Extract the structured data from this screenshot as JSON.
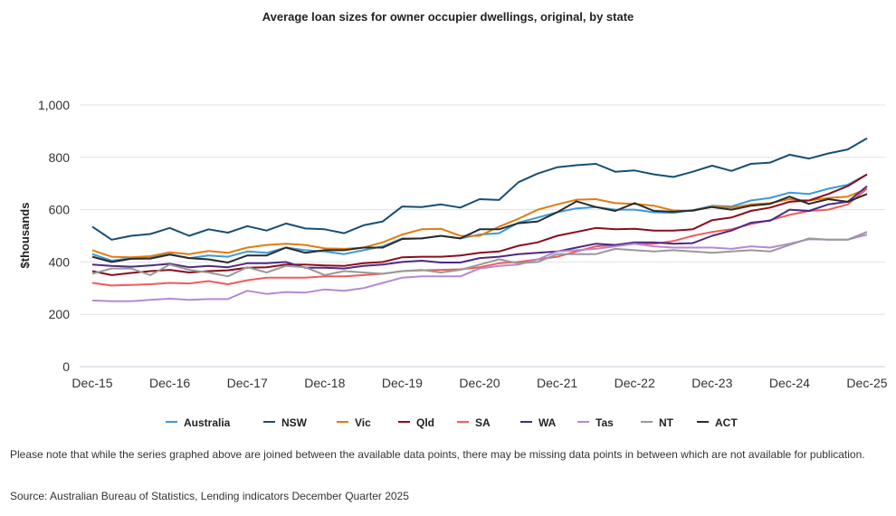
{
  "chart_data": {
    "type": "line",
    "title": "Average loan sizes for owner occupier dwellings, original, by state",
    "xlabel": "",
    "ylabel": "$thousands",
    "ylim": [
      0,
      1000
    ],
    "yticks": [
      0,
      200,
      400,
      600,
      800,
      1000
    ],
    "ytick_labels": [
      "0",
      "200",
      "400",
      "600",
      "800",
      "1,000"
    ],
    "xtick_labels": [
      "Dec-15",
      "Dec-16",
      "Dec-17",
      "Dec-18",
      "Dec-19",
      "Dec-20",
      "Dec-21",
      "Dec-22",
      "Dec-23",
      "Dec-24",
      "Dec-25"
    ],
    "x_start": "Dec-15",
    "x_frequency": "quarterly",
    "grid": true,
    "legend_position": "bottom",
    "series": [
      {
        "name": "Australia",
        "color": "#3a9ad9",
        "values": [
          430,
          405,
          415,
          420,
          430,
          415,
          425,
          420,
          440,
          435,
          455,
          445,
          440,
          430,
          445,
          460,
          490,
          490,
          500,
          490,
          505,
          510,
          550,
          570,
          590,
          605,
          610,
          600,
          600,
          590,
          588,
          598,
          615,
          612,
          635,
          645,
          665,
          660,
          680,
          695,
          735
        ]
      },
      {
        "name": "NSW",
        "color": "#174f73",
        "values": [
          535,
          485,
          500,
          507,
          530,
          500,
          525,
          512,
          537,
          520,
          547,
          528,
          525,
          510,
          540,
          555,
          612,
          610,
          620,
          608,
          640,
          637,
          705,
          738,
          762,
          770,
          775,
          745,
          750,
          735,
          725,
          745,
          768,
          748,
          775,
          780,
          810,
          795,
          815,
          830,
          873
        ]
      },
      {
        "name": "Vic",
        "color": "#e07c10",
        "values": [
          445,
          420,
          418,
          422,
          437,
          430,
          442,
          435,
          455,
          465,
          470,
          465,
          452,
          450,
          455,
          475,
          505,
          525,
          527,
          500,
          500,
          535,
          565,
          600,
          620,
          638,
          640,
          625,
          622,
          615,
          597,
          595,
          612,
          608,
          620,
          625,
          640,
          635,
          645,
          650,
          680
        ]
      },
      {
        "name": "Qld",
        "color": "#8b0d1c",
        "values": [
          365,
          350,
          358,
          365,
          370,
          360,
          365,
          368,
          378,
          380,
          390,
          390,
          387,
          385,
          395,
          400,
          418,
          420,
          420,
          425,
          435,
          440,
          462,
          475,
          500,
          515,
          530,
          525,
          527,
          520,
          520,
          525,
          560,
          570,
          595,
          608,
          630,
          635,
          660,
          690,
          735
        ]
      },
      {
        "name": "SA",
        "color": "#f25a5a",
        "values": [
          320,
          310,
          312,
          315,
          320,
          318,
          327,
          315,
          330,
          340,
          340,
          340,
          345,
          345,
          350,
          355,
          365,
          368,
          370,
          372,
          380,
          395,
          400,
          410,
          420,
          440,
          460,
          465,
          470,
          470,
          480,
          500,
          515,
          525,
          545,
          560,
          580,
          595,
          600,
          620,
          680
        ]
      },
      {
        "name": "WA",
        "color": "#4c2a85",
        "values": [
          390,
          385,
          382,
          387,
          393,
          380,
          385,
          380,
          395,
          395,
          400,
          378,
          378,
          375,
          385,
          390,
          400,
          405,
          398,
          398,
          415,
          420,
          430,
          435,
          440,
          455,
          470,
          465,
          475,
          475,
          470,
          472,
          500,
          520,
          550,
          558,
          600,
          595,
          620,
          630,
          690
        ]
      },
      {
        "name": "Tas",
        "color": "#b48ad1",
        "values": [
          253,
          250,
          250,
          255,
          260,
          255,
          258,
          258,
          290,
          278,
          285,
          283,
          295,
          290,
          300,
          320,
          340,
          345,
          345,
          345,
          375,
          385,
          390,
          410,
          440,
          445,
          450,
          460,
          470,
          460,
          455,
          455,
          455,
          450,
          460,
          455,
          470,
          487,
          485,
          485,
          505
        ]
      },
      {
        "name": "NT",
        "color": "#999999",
        "values": [
          355,
          375,
          375,
          350,
          390,
          370,
          360,
          345,
          380,
          360,
          385,
          380,
          350,
          365,
          360,
          355,
          365,
          370,
          360,
          370,
          390,
          410,
          395,
          400,
          430,
          430,
          430,
          450,
          445,
          440,
          445,
          440,
          435,
          440,
          445,
          440,
          465,
          490,
          485,
          485,
          515
        ]
      },
      {
        "name": "ACT",
        "color": "#2b2b2b",
        "values": [
          420,
          400,
          412,
          413,
          428,
          415,
          410,
          398,
          425,
          425,
          455,
          435,
          445,
          445,
          455,
          455,
          488,
          490,
          500,
          490,
          525,
          525,
          548,
          555,
          590,
          632,
          610,
          595,
          625,
          595,
          592,
          597,
          610,
          600,
          615,
          622,
          650,
          622,
          640,
          630,
          660
        ]
      }
    ]
  },
  "notes": {
    "disclaimer": "Please note that while the series graphed above are joined between the available data points, there may be missing data points in between which are not available for publication.",
    "source": "Source: Australian Bureau of Statistics, Lending indicators December Quarter 2025"
  }
}
